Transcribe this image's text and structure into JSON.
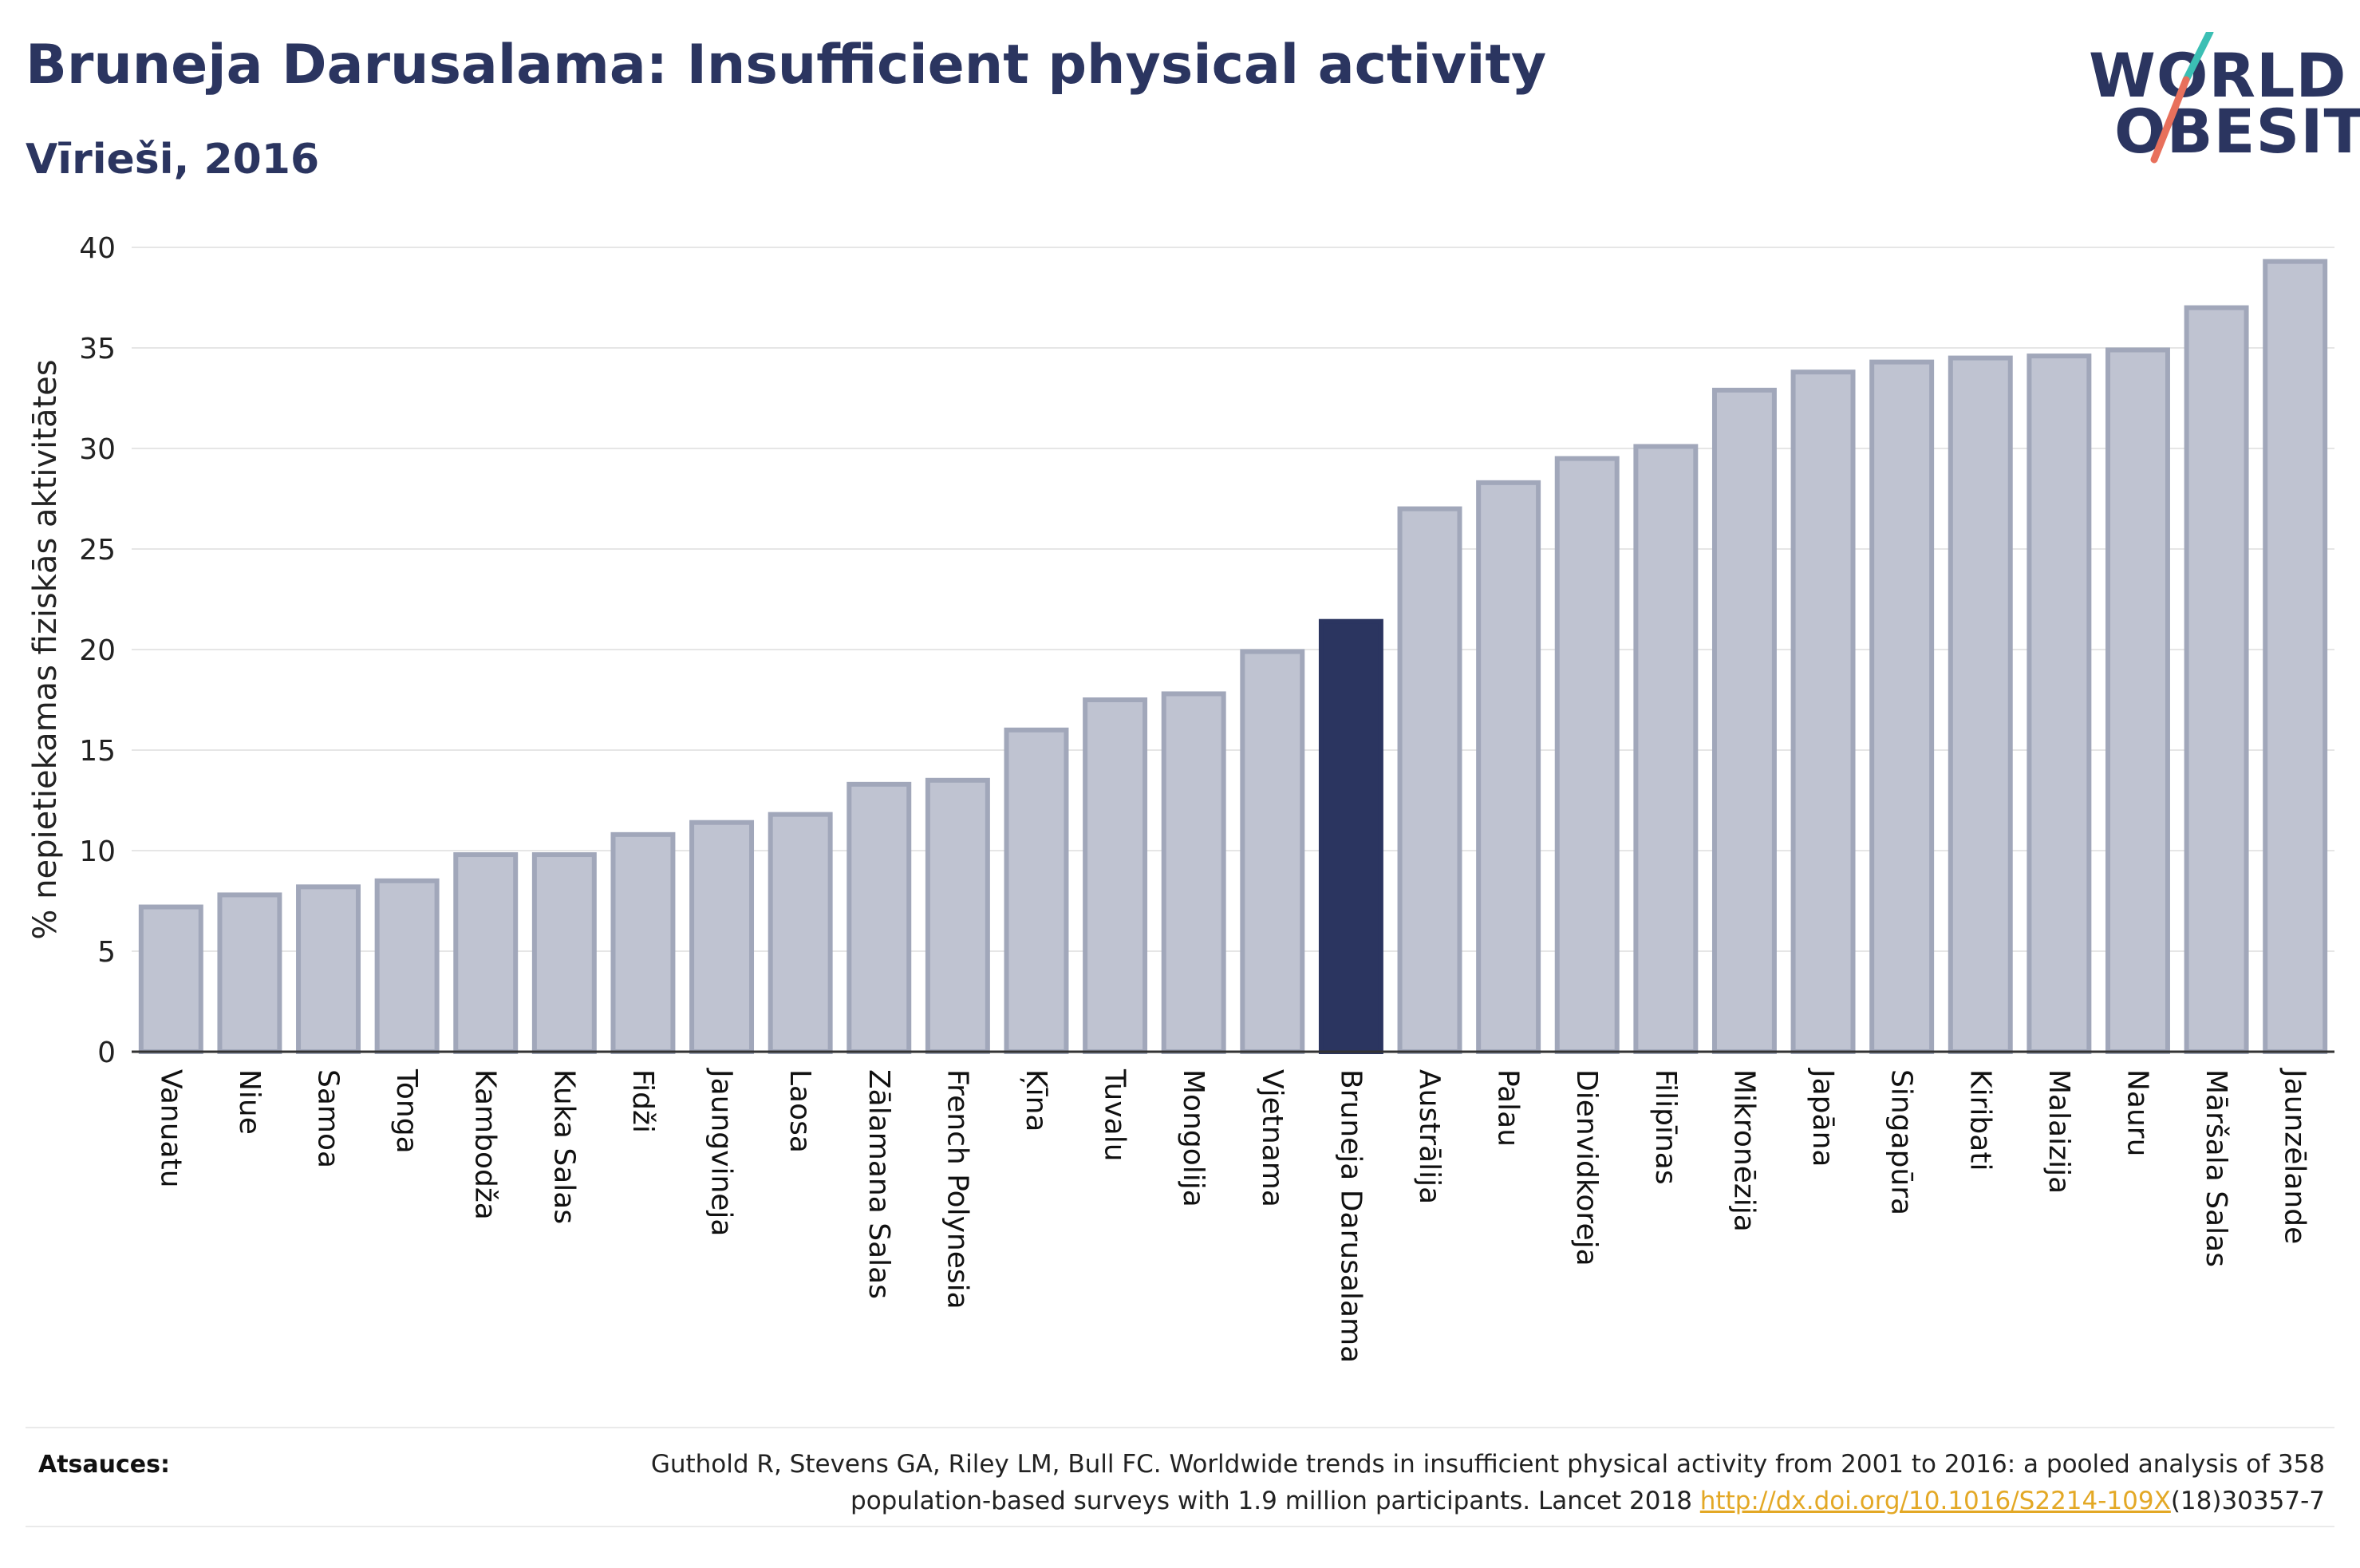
{
  "header": {
    "title": "Bruneja Darusalama: Insufficient physical activity",
    "subtitle": "Vīrieši, 2016"
  },
  "logo": {
    "line1": "WORLD",
    "line2": "OBESITY",
    "colors": {
      "text": "#2b3560",
      "slash_top": "#3bbfb4",
      "slash_bottom": "#e8705c"
    }
  },
  "colors": {
    "bar": "#bfc3d1",
    "bar_stroke": "#a1a7ba",
    "highlight": "#2b3560",
    "grid": "#e6e6e6",
    "axis": "#333333"
  },
  "chart_data": {
    "type": "bar",
    "title": "Bruneja Darusalama: Insufficient physical activity",
    "subtitle": "Vīrieši, 2016",
    "ylabel": "% nepietiekamas fiziskās aktivitātes",
    "xlabel": "",
    "ylim": [
      0,
      40
    ],
    "yticks": [
      0,
      5,
      10,
      15,
      20,
      25,
      30,
      35,
      40
    ],
    "grid": true,
    "highlight": "Bruneja Darusalama",
    "categories": [
      "Vanuatu",
      "Niue",
      "Samoa",
      "Tonga",
      "Kambodža",
      "Kuka Salas",
      "Fidži",
      "Jaungvineja",
      "Laosa",
      "Zālamana Salas",
      "French Polynesia",
      "Ķīna",
      "Tuvalu",
      "Mongolija",
      "Vjetnama",
      "Bruneja Darusalama",
      "Austrālija",
      "Palau",
      "Dienvidkoreja",
      "Filipīnas",
      "Mikronēzija",
      "Japāna",
      "Singapūra",
      "Kiribati",
      "Malaizija",
      "Nauru",
      "Māršala Salas",
      "Jaunzēlande"
    ],
    "values": [
      7.2,
      7.8,
      8.2,
      8.5,
      9.8,
      9.8,
      10.8,
      11.4,
      11.8,
      13.3,
      13.5,
      16.0,
      17.5,
      17.8,
      19.9,
      21.4,
      27.0,
      28.3,
      29.5,
      30.1,
      32.9,
      33.8,
      34.3,
      34.5,
      34.6,
      34.9,
      37.0,
      39.3
    ]
  },
  "footer": {
    "sources_label": "Atsauces:",
    "citation_line1": "Guthold R, Stevens GA, Riley LM, Bull FC. Worldwide trends in insufficient physical activity from 2001 to 2016: a pooled analysis of 358",
    "citation_line2_pre": "population-based surveys with 1.9 million participants. Lancet 2018 ",
    "citation_link": "http://dx.doi.org/10.1016/S2214-109X",
    "citation_line2_post": "(18)30357-7"
  }
}
